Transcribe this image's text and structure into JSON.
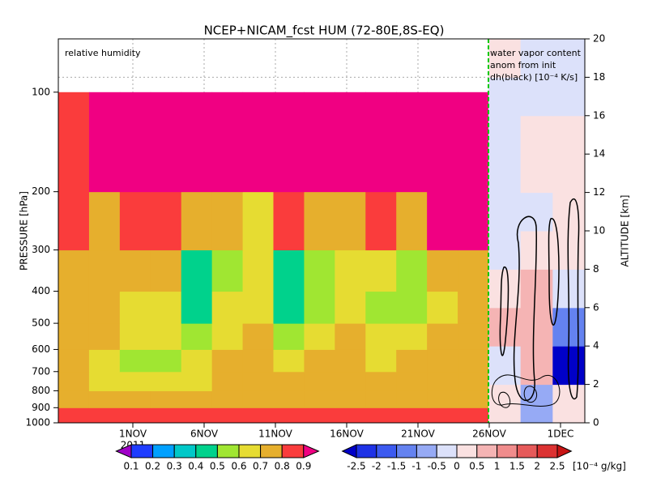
{
  "title": "NCEP+NICAM_fcst HUM (72-80E,8S-EQ)",
  "chart_data": [
    {
      "type": "heatmap",
      "label": "relative humidity",
      "y_label": "PRESSURE [hPa]",
      "log_y": true,
      "categories": [
        "1NOV",
        "6NOV",
        "11NOV",
        "16NOV",
        "21NOV",
        "26NOV",
        "1DEC"
      ],
      "year_label": "2011",
      "ylim": [
        1000,
        69
      ],
      "yticks": [
        1000,
        900,
        800,
        700,
        600,
        500,
        400,
        300,
        200,
        100
      ],
      "grid": true,
      "values": [
        [
          0.85,
          0.85,
          0.85,
          0.85,
          0.85,
          0.85,
          0.85,
          0.85,
          0.85,
          0.85,
          0.85,
          0.85,
          0.85,
          0.85
        ],
        [
          0.75,
          0.75,
          0.7,
          0.7,
          0.7,
          0.75,
          0.75,
          0.75,
          0.75,
          0.75,
          0.75,
          0.75,
          0.75,
          0.75
        ],
        [
          0.7,
          0.65,
          0.6,
          0.6,
          0.65,
          0.7,
          0.7,
          0.7,
          0.7,
          0.7,
          0.7,
          0.7,
          0.7,
          0.75
        ],
        [
          0.7,
          0.65,
          0.55,
          0.55,
          0.6,
          0.7,
          0.7,
          0.65,
          0.7,
          0.7,
          0.65,
          0.7,
          0.7,
          0.7
        ],
        [
          0.7,
          0.7,
          0.65,
          0.6,
          0.55,
          0.65,
          0.7,
          0.5,
          0.6,
          0.7,
          0.6,
          0.6,
          0.7,
          0.7
        ],
        [
          0.75,
          0.7,
          0.65,
          0.6,
          0.45,
          0.6,
          0.65,
          0.4,
          0.5,
          0.65,
          0.55,
          0.5,
          0.65,
          0.7
        ],
        [
          0.75,
          0.7,
          0.75,
          0.7,
          0.45,
          0.55,
          0.65,
          0.4,
          0.55,
          0.65,
          0.6,
          0.55,
          0.7,
          0.75
        ],
        [
          0.8,
          0.75,
          0.8,
          0.8,
          0.7,
          0.75,
          0.65,
          0.8,
          0.75,
          0.75,
          0.8,
          0.75,
          0.9,
          0.9
        ],
        [
          0.8,
          0.9,
          0.95,
          0.95,
          0.95,
          0.95,
          0.95,
          0.95,
          0.95,
          0.95,
          0.95,
          0.95,
          0.95,
          0.95
        ]
      ],
      "colorbar": {
        "bounds": [
          0.1,
          0.2,
          0.3,
          0.4,
          0.5,
          0.6,
          0.7,
          0.8,
          0.9
        ],
        "colors": [
          "#a000c8",
          "#1e3cff",
          "#00a0ff",
          "#00c8c8",
          "#00d28c",
          "#a0e632",
          "#e6dc32",
          "#e6af2d",
          "#fa3c3c",
          "#f00082"
        ]
      }
    },
    {
      "type": "heatmap",
      "label_lines": [
        "water vapor content",
        "anom from init",
        "dh(black) [10⁻⁴ K/s]"
      ],
      "y_label": "ALTITUDE [km]",
      "ylim": [
        0,
        20
      ],
      "yticks": [
        0,
        2,
        4,
        6,
        8,
        10,
        12,
        14,
        16,
        18,
        20
      ],
      "values": [
        [
          0.3,
          -0.6,
          0.3
        ],
        [
          -0.3,
          0.6,
          -2.7
        ],
        [
          0.7,
          0.7,
          -1.2
        ],
        [
          0.3,
          0.6,
          -0.3
        ],
        [
          -0.3,
          0.3,
          0.3
        ],
        [
          -0.3,
          -0.3,
          0.2
        ],
        [
          -0.2,
          0.2,
          0.3
        ],
        [
          -0.2,
          0.2,
          0.2
        ],
        [
          -0.2,
          -0.2,
          -0.2
        ],
        [
          0.2,
          -0.2,
          -0.2
        ]
      ],
      "colorbar": {
        "bounds": [
          -2.5,
          -2,
          -1.5,
          -1,
          -0.5,
          0,
          0.5,
          1,
          1.5,
          2,
          2.5
        ],
        "unit": "[10⁻⁴ g/kg]",
        "colors": [
          "#0000c8",
          "#1e32e6",
          "#3c5af0",
          "#6482f0",
          "#96aaf5",
          "#dce1fa",
          "#fae1e1",
          "#f5b4b4",
          "#f08c8c",
          "#e65a5a",
          "#dc3232",
          "#c81414"
        ]
      }
    }
  ]
}
